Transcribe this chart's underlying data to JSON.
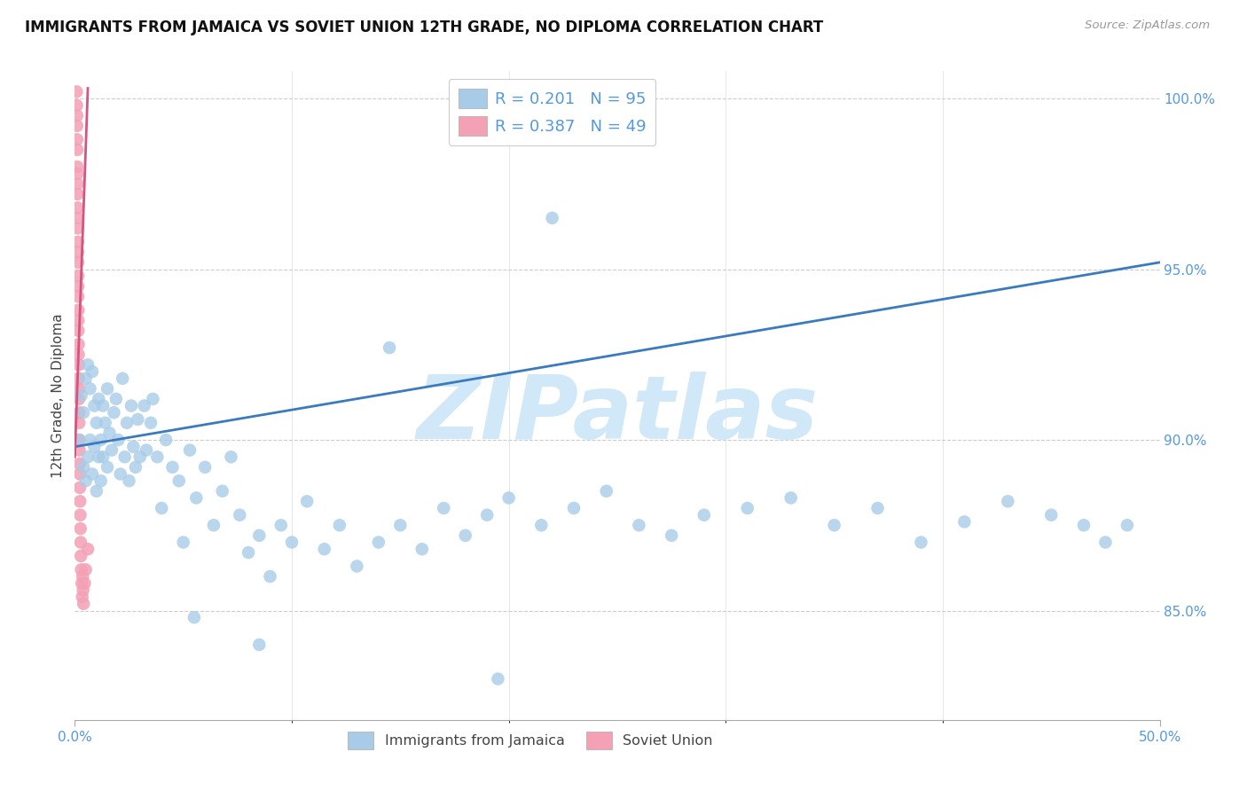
{
  "title": "IMMIGRANTS FROM JAMAICA VS SOVIET UNION 12TH GRADE, NO DIPLOMA CORRELATION CHART",
  "source": "Source: ZipAtlas.com",
  "ylabel": "12th Grade, No Diploma",
  "x_min": 0.0,
  "x_max": 0.5,
  "y_min": 0.818,
  "y_max": 1.008,
  "y_ticks": [
    0.85,
    0.9,
    0.95,
    1.0
  ],
  "jamaica_color": "#a8cce8",
  "soviet_color": "#f4a0b5",
  "jamaica_line_color": "#3a7abf",
  "soviet_line_color": "#d45580",
  "jamaica_R": 0.201,
  "jamaica_N": 95,
  "soviet_R": 0.387,
  "soviet_N": 49,
  "watermark": "ZIPatlas",
  "watermark_color": "#d0e8f8",
  "background_color": "#ffffff",
  "grid_color": "#cccccc",
  "title_fontsize": 12,
  "tick_label_color": "#5599dd",
  "jamaica_x": [
    0.002,
    0.003,
    0.004,
    0.004,
    0.005,
    0.005,
    0.006,
    0.006,
    0.007,
    0.007,
    0.008,
    0.008,
    0.009,
    0.009,
    0.01,
    0.01,
    0.011,
    0.011,
    0.012,
    0.012,
    0.013,
    0.013,
    0.014,
    0.015,
    0.015,
    0.016,
    0.017,
    0.018,
    0.019,
    0.02,
    0.021,
    0.022,
    0.023,
    0.024,
    0.025,
    0.026,
    0.027,
    0.028,
    0.029,
    0.03,
    0.032,
    0.033,
    0.035,
    0.036,
    0.038,
    0.04,
    0.042,
    0.045,
    0.048,
    0.05,
    0.053,
    0.056,
    0.06,
    0.064,
    0.068,
    0.072,
    0.076,
    0.08,
    0.085,
    0.09,
    0.095,
    0.1,
    0.107,
    0.115,
    0.122,
    0.13,
    0.14,
    0.15,
    0.16,
    0.17,
    0.18,
    0.19,
    0.2,
    0.215,
    0.23,
    0.245,
    0.26,
    0.275,
    0.29,
    0.31,
    0.33,
    0.35,
    0.37,
    0.39,
    0.41,
    0.43,
    0.45,
    0.465,
    0.475,
    0.485,
    0.22,
    0.145,
    0.055,
    0.195,
    0.085
  ],
  "jamaica_y": [
    0.9,
    0.913,
    0.892,
    0.908,
    0.888,
    0.918,
    0.895,
    0.922,
    0.9,
    0.915,
    0.89,
    0.92,
    0.898,
    0.91,
    0.885,
    0.905,
    0.895,
    0.912,
    0.9,
    0.888,
    0.91,
    0.895,
    0.905,
    0.892,
    0.915,
    0.902,
    0.897,
    0.908,
    0.912,
    0.9,
    0.89,
    0.918,
    0.895,
    0.905,
    0.888,
    0.91,
    0.898,
    0.892,
    0.906,
    0.895,
    0.91,
    0.897,
    0.905,
    0.912,
    0.895,
    0.88,
    0.9,
    0.892,
    0.888,
    0.87,
    0.897,
    0.883,
    0.892,
    0.875,
    0.885,
    0.895,
    0.878,
    0.867,
    0.872,
    0.86,
    0.875,
    0.87,
    0.882,
    0.868,
    0.875,
    0.863,
    0.87,
    0.875,
    0.868,
    0.88,
    0.872,
    0.878,
    0.883,
    0.875,
    0.88,
    0.885,
    0.875,
    0.872,
    0.878,
    0.88,
    0.883,
    0.875,
    0.88,
    0.87,
    0.876,
    0.882,
    0.878,
    0.875,
    0.87,
    0.875,
    0.965,
    0.927,
    0.848,
    0.83,
    0.84
  ],
  "soviet_x": [
    0.0008,
    0.0009,
    0.001,
    0.001,
    0.001,
    0.0011,
    0.0011,
    0.0012,
    0.0012,
    0.0012,
    0.0013,
    0.0013,
    0.0013,
    0.0014,
    0.0014,
    0.0014,
    0.0015,
    0.0015,
    0.0015,
    0.0016,
    0.0016,
    0.0016,
    0.0017,
    0.0017,
    0.0018,
    0.0018,
    0.0019,
    0.0019,
    0.002,
    0.002,
    0.0021,
    0.0021,
    0.0022,
    0.0023,
    0.0023,
    0.0024,
    0.0025,
    0.0026,
    0.0027,
    0.0028,
    0.003,
    0.0032,
    0.0034,
    0.0036,
    0.0038,
    0.004,
    0.0045,
    0.005,
    0.006
  ],
  "soviet_y": [
    1.002,
    0.998,
    0.995,
    0.992,
    0.988,
    0.985,
    0.98,
    0.978,
    0.975,
    0.972,
    0.968,
    0.965,
    0.962,
    0.958,
    0.955,
    0.952,
    0.948,
    0.945,
    0.942,
    0.938,
    0.935,
    0.932,
    0.928,
    0.925,
    0.922,
    0.918,
    0.915,
    0.912,
    0.908,
    0.905,
    0.9,
    0.897,
    0.893,
    0.89,
    0.886,
    0.882,
    0.878,
    0.874,
    0.87,
    0.866,
    0.862,
    0.858,
    0.854,
    0.86,
    0.856,
    0.852,
    0.858,
    0.862,
    0.868
  ],
  "jamaica_line_x": [
    0.0,
    0.5
  ],
  "jamaica_line_y": [
    0.898,
    0.952
  ],
  "soviet_line_x": [
    0.0,
    0.006
  ],
  "soviet_line_y": [
    0.895,
    1.003
  ]
}
